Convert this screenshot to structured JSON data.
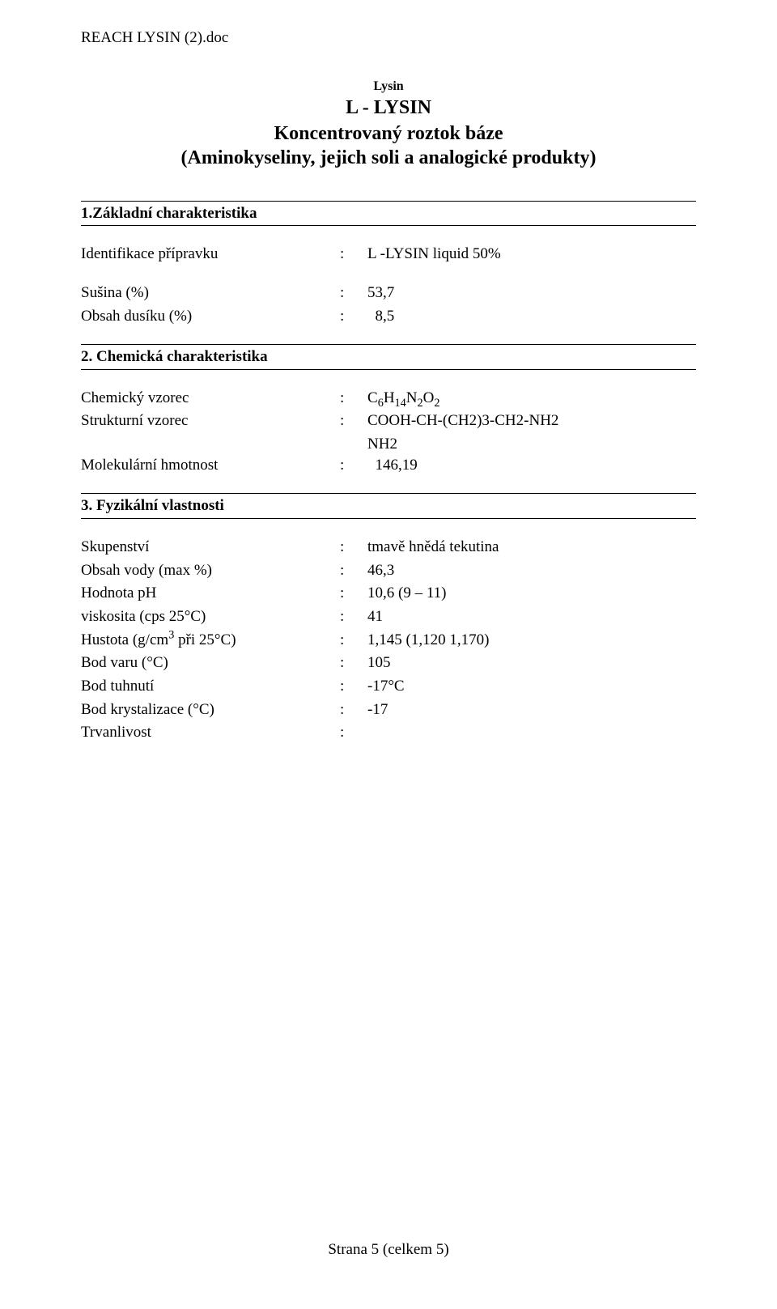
{
  "header_path": "REACH LYSIN (2).doc",
  "title": {
    "small": "Lysin",
    "main": "L - LYSIN",
    "sub1": "Koncentrovaný roztok báze",
    "sub2": "(Aminokyseliny, jejich soli a analogické produkty)"
  },
  "section1": {
    "heading": "1.Základní charakteristika",
    "rows": [
      {
        "label": "Identifikace přípravku",
        "value": "L -LYSIN liquid 50%"
      }
    ],
    "rows2": [
      {
        "label": "Sušina (%)",
        "value": "53,7"
      },
      {
        "label": "Obsah dusíku (%)",
        "value": "  8,5"
      }
    ]
  },
  "section2": {
    "heading": "2. Chemická charakteristika",
    "chem_formula_label": "Chemický vzorec",
    "struct_formula_label": "Strukturní vzorec",
    "struct_formula_value": "COOH-CH-(CH2)3-CH2-NH2",
    "struct_formula_extra": "NH2",
    "mol_weight_label": "Molekulární hmotnost",
    "mol_weight_value": "  146,19",
    "formula_parts": {
      "c": "C",
      "c_sub": "6",
      "h": "H",
      "h_sub": "14",
      "n": "N",
      "n_sub": "2",
      "o": "O",
      "o_sub": "2"
    }
  },
  "section3": {
    "heading": "3. Fyzikální vlastnosti",
    "rows": [
      {
        "label": "Skupenství",
        "value": "tmavě hnědá tekutina"
      },
      {
        "label": "Obsah vody (max %)",
        "value": "46,3"
      },
      {
        "label": "Hodnota pH",
        "value": "10,6 (9 – 11)"
      },
      {
        "label": "viskosita (cps 25°C)",
        "value": "41"
      }
    ],
    "density_label_pre": "Hustota (g/cm",
    "density_label_sup": "3",
    "density_label_post": " při 25°C)",
    "density_value": "1,145 (1,120 1,170)",
    "rows2": [
      {
        "label": "Bod varu (°C)",
        "value": "105"
      },
      {
        "label": "Bod tuhnutí",
        "value": "-17°C"
      },
      {
        "label": "Bod krystalizace (°C)",
        "value": "-17"
      },
      {
        "label": "Trvanlivost",
        "value": ""
      }
    ]
  },
  "footer": "Strana 5 (celkem 5)"
}
